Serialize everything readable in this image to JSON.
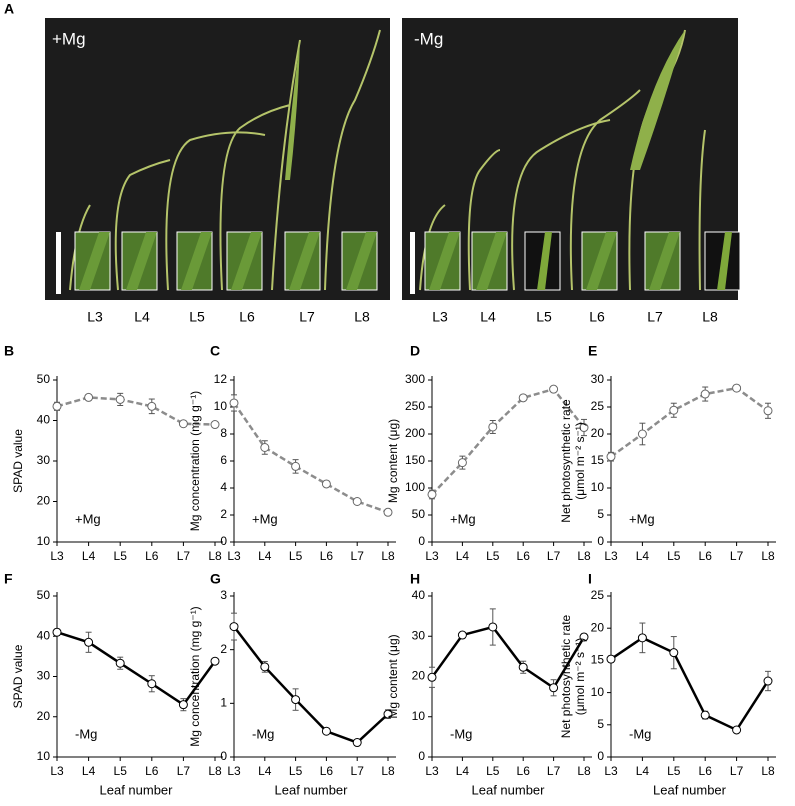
{
  "figure_panel": {
    "panel_label": "A",
    "photos": [
      {
        "label": "+Mg",
        "leaf_labels": [
          "L3",
          "L4",
          "L5",
          "L6",
          "L7",
          "L8"
        ]
      },
      {
        "label": "-Mg",
        "leaf_labels": [
          "L3",
          "L4",
          "L5",
          "L6",
          "L7",
          "L8"
        ]
      }
    ]
  },
  "chart_data": [
    {
      "type": "line",
      "panel_label": "B",
      "ylabel": [
        "SPAD value"
      ],
      "annotation": "+Mg",
      "categories": [
        "L3",
        "L4",
        "L5",
        "L6",
        "L7",
        "L8"
      ],
      "series": [
        {
          "color": "#8c8c8c",
          "line_style": "dashed",
          "values": [
            43.5,
            45.7,
            45.2,
            43.5,
            39.2,
            39.0
          ],
          "errors": [
            1.0,
            0.5,
            1.5,
            1.8,
            0.5,
            0.5
          ]
        }
      ],
      "ylim": [
        10,
        50
      ],
      "yticks": [
        10,
        20,
        30,
        40,
        50
      ]
    },
    {
      "type": "line",
      "panel_label": "C",
      "ylabel": [
        "Mg concentration (mg g⁻¹)"
      ],
      "annotation": "+Mg",
      "categories": [
        "L3",
        "L4",
        "L5",
        "L6",
        "L7",
        "L8"
      ],
      "series": [
        {
          "color": "#8c8c8c",
          "line_style": "dashed",
          "values": [
            10.3,
            7.0,
            5.6,
            4.3,
            3.0,
            2.2
          ],
          "errors": [
            0.6,
            0.5,
            0.5,
            0.2,
            0.1,
            0.1
          ]
        }
      ],
      "ylim": [
        0,
        12
      ],
      "yticks": [
        0,
        2,
        4,
        6,
        8,
        10,
        12
      ]
    },
    {
      "type": "line",
      "panel_label": "D",
      "ylabel": [
        "Mg content (μg)"
      ],
      "annotation": "+Mg",
      "categories": [
        "L3",
        "L4",
        "L5",
        "L6",
        "L7",
        "L8"
      ],
      "series": [
        {
          "color": "#8c8c8c",
          "line_style": "dashed",
          "values": [
            88,
            147,
            213,
            267,
            283,
            212
          ],
          "errors": [
            8,
            12,
            12,
            4,
            3,
            15
          ]
        }
      ],
      "ylim": [
        0,
        300
      ],
      "yticks": [
        0,
        50,
        100,
        150,
        200,
        250,
        300
      ]
    },
    {
      "type": "line",
      "panel_label": "E",
      "ylabel": [
        "Net photosynthetic rate",
        "(μmol m⁻² s⁻¹)"
      ],
      "annotation": "+Mg",
      "categories": [
        "L3",
        "L4",
        "L5",
        "L6",
        "L7",
        "L8"
      ],
      "series": [
        {
          "color": "#8c8c8c",
          "line_style": "dashed",
          "values": [
            15.8,
            20.0,
            24.4,
            27.4,
            28.5,
            24.3
          ],
          "errors": [
            0.8,
            2.0,
            1.3,
            1.3,
            0.4,
            1.4
          ]
        }
      ],
      "ylim": [
        0,
        30
      ],
      "yticks": [
        0,
        5,
        10,
        15,
        20,
        25,
        30
      ]
    },
    {
      "type": "line",
      "panel_label": "F",
      "ylabel": [
        "SPAD value"
      ],
      "annotation": "-Mg",
      "xlabel": "Leaf number",
      "categories": [
        "L3",
        "L4",
        "L5",
        "L6",
        "L7",
        "L8"
      ],
      "series": [
        {
          "color": "#000000",
          "line_style": "solid",
          "values": [
            41.0,
            38.5,
            33.3,
            28.2,
            23.0,
            33.8
          ],
          "errors": [
            0.8,
            2.5,
            1.5,
            2.0,
            1.5,
            0.5
          ]
        }
      ],
      "ylim": [
        10,
        50
      ],
      "yticks": [
        10,
        20,
        30,
        40,
        50
      ]
    },
    {
      "type": "line",
      "panel_label": "G",
      "ylabel": [
        "Mg concentration (mg g⁻¹)"
      ],
      "annotation": "-Mg",
      "xlabel": "Leaf number",
      "categories": [
        "L3",
        "L4",
        "L5",
        "L6",
        "L7",
        "L8"
      ],
      "series": [
        {
          "color": "#000000",
          "line_style": "solid",
          "values": [
            2.43,
            1.68,
            1.07,
            0.48,
            0.27,
            0.8
          ],
          "errors": [
            0.25,
            0.1,
            0.2,
            0.03,
            0.03,
            0.08
          ]
        }
      ],
      "ylim": [
        0,
        3
      ],
      "yticks": [
        0,
        1,
        2,
        3
      ]
    },
    {
      "type": "line",
      "panel_label": "H",
      "ylabel": [
        "Mg content (μg)"
      ],
      "annotation": "-Mg",
      "xlabel": "Leaf number",
      "categories": [
        "L3",
        "L4",
        "L5",
        "L6",
        "L7",
        "L8"
      ],
      "series": [
        {
          "color": "#000000",
          "line_style": "solid",
          "values": [
            19.8,
            30.3,
            32.3,
            22.3,
            17.2,
            29.8
          ],
          "errors": [
            2.5,
            0.5,
            4.5,
            1.5,
            2.0,
            0.8
          ]
        }
      ],
      "ylim": [
        0,
        40
      ],
      "yticks": [
        0,
        10,
        20,
        30,
        40
      ]
    },
    {
      "type": "line",
      "panel_label": "I",
      "ylabel": [
        "Net photosynthetic rate",
        "(μmol m⁻² s⁻¹)"
      ],
      "annotation": "-Mg",
      "xlabel": "Leaf number",
      "categories": [
        "L3",
        "L4",
        "L5",
        "L6",
        "L7",
        "L8"
      ],
      "series": [
        {
          "color": "#000000",
          "line_style": "solid",
          "values": [
            15.2,
            18.5,
            16.2,
            6.5,
            4.2,
            11.8
          ],
          "errors": [
            0.5,
            2.3,
            2.5,
            0.6,
            0.3,
            1.5
          ]
        }
      ],
      "ylim": [
        0,
        25
      ],
      "yticks": [
        0,
        5,
        10,
        15,
        20,
        25
      ]
    }
  ]
}
